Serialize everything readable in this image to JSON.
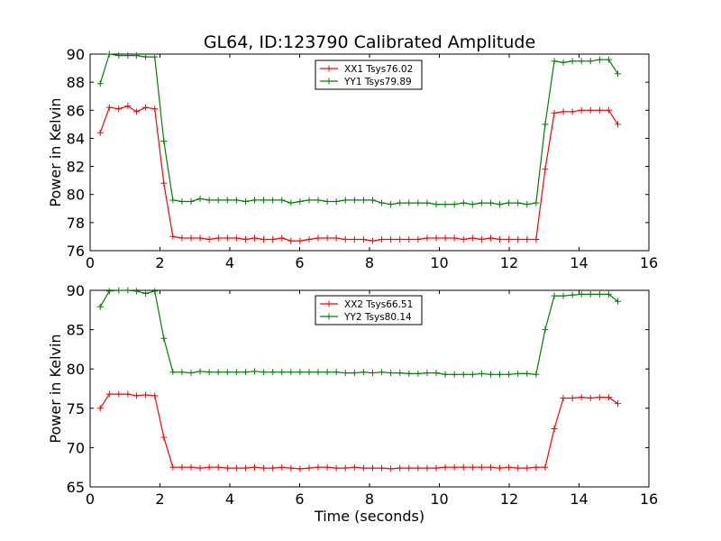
{
  "figure": {
    "title": "GL64, ID:123790 Calibrated Amplitude"
  },
  "colors": {
    "xx": "#ff0000",
    "yy": "#008000",
    "axis": "#000000"
  },
  "chart_data": [
    {
      "type": "line",
      "marker": "plus",
      "xlabel": "",
      "ylabel": "Power in Kelvin",
      "xlim": [
        0,
        16
      ],
      "ylim": [
        76,
        90
      ],
      "xticks": [
        0,
        2,
        4,
        6,
        8,
        10,
        12,
        14,
        16
      ],
      "yticks": [
        76,
        78,
        80,
        82,
        84,
        86,
        88,
        90
      ],
      "grid": false,
      "legend_position": "top-center",
      "series": [
        {
          "name": "XX1 Tsys76.02",
          "color": "#ff0000",
          "x": [
            0.29,
            0.55,
            0.82,
            1.08,
            1.33,
            1.59,
            1.85,
            2.11,
            2.37,
            2.63,
            2.89,
            3.15,
            3.41,
            3.67,
            3.93,
            4.19,
            4.45,
            4.71,
            4.97,
            5.23,
            5.49,
            5.75,
            6.01,
            6.27,
            6.53,
            6.79,
            7.05,
            7.31,
            7.57,
            7.83,
            8.09,
            8.35,
            8.61,
            8.87,
            9.13,
            9.39,
            9.65,
            9.91,
            10.17,
            10.43,
            10.69,
            10.95,
            11.21,
            11.47,
            11.73,
            11.99,
            12.25,
            12.51,
            12.77,
            13.03,
            13.29,
            13.55,
            13.81,
            14.07,
            14.33,
            14.59,
            14.85,
            15.11
          ],
          "y": [
            84.4,
            86.2,
            86.1,
            86.3,
            85.9,
            86.2,
            86.1,
            80.8,
            77.0,
            76.9,
            76.9,
            76.9,
            76.8,
            76.9,
            76.9,
            76.9,
            76.8,
            76.9,
            76.8,
            76.8,
            76.9,
            76.7,
            76.7,
            76.8,
            76.9,
            76.9,
            76.9,
            76.8,
            76.8,
            76.8,
            76.7,
            76.8,
            76.8,
            76.8,
            76.8,
            76.8,
            76.9,
            76.9,
            76.9,
            76.9,
            76.8,
            76.9,
            76.8,
            76.9,
            76.8,
            76.8,
            76.8,
            76.8,
            76.8,
            81.8,
            85.8,
            85.9,
            85.9,
            86.0,
            86.0,
            86.0,
            86.0,
            85.0
          ]
        },
        {
          "name": "YY1 Tsys79.89",
          "color": "#008000",
          "x": [
            0.29,
            0.55,
            0.82,
            1.08,
            1.33,
            1.59,
            1.85,
            2.11,
            2.37,
            2.63,
            2.89,
            3.15,
            3.41,
            3.67,
            3.93,
            4.19,
            4.45,
            4.71,
            4.97,
            5.23,
            5.49,
            5.75,
            6.01,
            6.27,
            6.53,
            6.79,
            7.05,
            7.31,
            7.57,
            7.83,
            8.09,
            8.35,
            8.61,
            8.87,
            9.13,
            9.39,
            9.65,
            9.91,
            10.17,
            10.43,
            10.69,
            10.95,
            11.21,
            11.47,
            11.73,
            11.99,
            12.25,
            12.51,
            12.77,
            13.03,
            13.29,
            13.55,
            13.81,
            14.07,
            14.33,
            14.59,
            14.85,
            15.11
          ],
          "y": [
            87.9,
            90.0,
            89.9,
            89.9,
            89.9,
            89.8,
            89.8,
            83.8,
            79.6,
            79.5,
            79.5,
            79.7,
            79.6,
            79.6,
            79.6,
            79.6,
            79.5,
            79.6,
            79.6,
            79.6,
            79.6,
            79.4,
            79.5,
            79.6,
            79.6,
            79.5,
            79.5,
            79.6,
            79.6,
            79.6,
            79.6,
            79.4,
            79.3,
            79.4,
            79.4,
            79.4,
            79.4,
            79.3,
            79.3,
            79.3,
            79.4,
            79.3,
            79.4,
            79.4,
            79.3,
            79.4,
            79.4,
            79.3,
            79.4,
            85.0,
            89.5,
            89.4,
            89.5,
            89.5,
            89.5,
            89.6,
            89.6,
            88.6
          ]
        }
      ]
    },
    {
      "type": "line",
      "marker": "plus",
      "xlabel": "Time (seconds)",
      "ylabel": "Power in Kelvin",
      "xlim": [
        0,
        16
      ],
      "ylim": [
        65,
        90
      ],
      "xticks": [
        0,
        2,
        4,
        6,
        8,
        10,
        12,
        14,
        16
      ],
      "yticks": [
        65,
        70,
        75,
        80,
        85,
        90
      ],
      "grid": false,
      "legend_position": "top-center",
      "series": [
        {
          "name": "XX2 Tsys66.51",
          "color": "#ff0000",
          "x": [
            0.29,
            0.55,
            0.82,
            1.08,
            1.33,
            1.59,
            1.85,
            2.11,
            2.37,
            2.63,
            2.89,
            3.15,
            3.41,
            3.67,
            3.93,
            4.19,
            4.45,
            4.71,
            4.97,
            5.23,
            5.49,
            5.75,
            6.01,
            6.27,
            6.53,
            6.79,
            7.05,
            7.31,
            7.57,
            7.83,
            8.09,
            8.35,
            8.61,
            8.87,
            9.13,
            9.39,
            9.65,
            9.91,
            10.17,
            10.43,
            10.69,
            10.95,
            11.21,
            11.47,
            11.73,
            11.99,
            12.25,
            12.51,
            12.77,
            13.03,
            13.29,
            13.55,
            13.81,
            14.07,
            14.33,
            14.59,
            14.85,
            15.11
          ],
          "y": [
            75.0,
            76.8,
            76.8,
            76.8,
            76.6,
            76.7,
            76.6,
            71.3,
            67.5,
            67.5,
            67.5,
            67.4,
            67.5,
            67.5,
            67.4,
            67.4,
            67.4,
            67.5,
            67.4,
            67.4,
            67.5,
            67.4,
            67.3,
            67.4,
            67.5,
            67.5,
            67.4,
            67.4,
            67.5,
            67.4,
            67.4,
            67.4,
            67.3,
            67.4,
            67.4,
            67.4,
            67.4,
            67.4,
            67.5,
            67.5,
            67.5,
            67.5,
            67.5,
            67.5,
            67.4,
            67.5,
            67.4,
            67.4,
            67.5,
            67.5,
            72.4,
            76.3,
            76.3,
            76.4,
            76.3,
            76.4,
            76.4,
            75.6
          ]
        },
        {
          "name": "YY2 Tsys80.14",
          "color": "#008000",
          "x": [
            0.29,
            0.55,
            0.82,
            1.08,
            1.33,
            1.59,
            1.85,
            2.11,
            2.37,
            2.63,
            2.89,
            3.15,
            3.41,
            3.67,
            3.93,
            4.19,
            4.45,
            4.71,
            4.97,
            5.23,
            5.49,
            5.75,
            6.01,
            6.27,
            6.53,
            6.79,
            7.05,
            7.31,
            7.57,
            7.83,
            8.09,
            8.35,
            8.61,
            8.87,
            9.13,
            9.39,
            9.65,
            9.91,
            10.17,
            10.43,
            10.69,
            10.95,
            11.21,
            11.47,
            11.73,
            11.99,
            12.25,
            12.51,
            12.77,
            13.03,
            13.29,
            13.55,
            13.81,
            14.07,
            14.33,
            14.59,
            14.85,
            15.11
          ],
          "y": [
            87.9,
            89.9,
            90.0,
            90.0,
            89.9,
            89.6,
            89.9,
            83.9,
            79.6,
            79.6,
            79.5,
            79.7,
            79.6,
            79.6,
            79.6,
            79.6,
            79.6,
            79.7,
            79.6,
            79.6,
            79.6,
            79.6,
            79.6,
            79.6,
            79.6,
            79.6,
            79.6,
            79.5,
            79.5,
            79.6,
            79.5,
            79.6,
            79.5,
            79.5,
            79.4,
            79.4,
            79.5,
            79.5,
            79.3,
            79.3,
            79.3,
            79.3,
            79.4,
            79.3,
            79.3,
            79.3,
            79.4,
            79.4,
            79.3,
            85.0,
            89.3,
            89.3,
            89.4,
            89.5,
            89.5,
            89.5,
            89.5,
            88.6
          ]
        }
      ]
    }
  ]
}
